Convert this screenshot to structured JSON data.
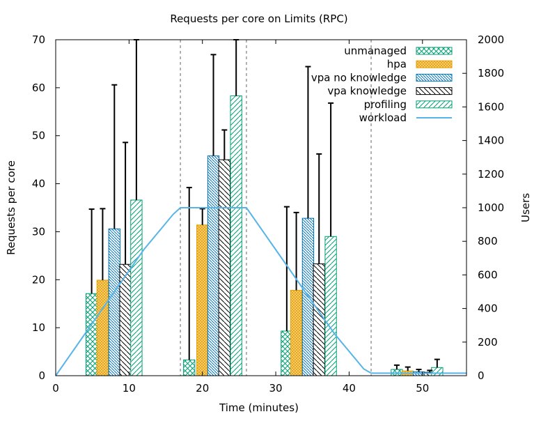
{
  "chart_data": {
    "type": "bar",
    "title": "Requests per core on Limits (RPC)",
    "xlabel": "Time (minutes)",
    "ylabel": "Requests per core",
    "y2label": "Users",
    "xlim": [
      0,
      56
    ],
    "ylim": [
      0,
      70
    ],
    "y2lim": [
      0,
      2000
    ],
    "xticks": [
      0,
      10,
      20,
      30,
      40,
      50
    ],
    "yticks": [
      0,
      10,
      20,
      30,
      40,
      50,
      60,
      70
    ],
    "y2ticks": [
      0,
      200,
      400,
      600,
      800,
      1000,
      1200,
      1400,
      1600,
      1800,
      2000
    ],
    "phase_boundaries": [
      17,
      26,
      43
    ],
    "bar_width": 1.55,
    "legend_position": "top-right",
    "grid": false,
    "series": [
      {
        "name": "unmanaged",
        "pattern": "crosshatch",
        "color": "#009e73",
        "bars": [
          {
            "x": 4.9,
            "value": 17.1,
            "err_high": 34.7
          },
          {
            "x": 18.2,
            "value": 3.3,
            "err_high": 39.2
          },
          {
            "x": 31.5,
            "value": 9.3,
            "err_high": 35.2
          },
          {
            "x": 46.5,
            "value": 1.3,
            "err_high": 2.2
          }
        ]
      },
      {
        "name": "hpa",
        "pattern": "dense",
        "color": "#e69f00",
        "bars": [
          {
            "x": 6.4,
            "value": 19.9,
            "err_high": 34.8
          },
          {
            "x": 20.0,
            "value": 31.4,
            "err_high": 34.8
          },
          {
            "x": 32.8,
            "value": 17.8,
            "err_high": 34.0
          },
          {
            "x": 48.0,
            "value": 1.0,
            "err_high": 1.8
          }
        ]
      },
      {
        "name": "vpa no knowledge",
        "pattern": "back-diagonal-dense",
        "color": "#0072b2",
        "bars": [
          {
            "x": 8.0,
            "value": 30.6,
            "err_high": 60.6
          },
          {
            "x": 21.5,
            "value": 45.8,
            "err_high": 66.9
          },
          {
            "x": 34.4,
            "value": 32.8,
            "err_high": 64.4
          },
          {
            "x": 49.5,
            "value": 0.8,
            "err_high": 1.3
          }
        ]
      },
      {
        "name": "vpa knowledge",
        "pattern": "back-diagonal",
        "color": "#000000",
        "bars": [
          {
            "x": 9.5,
            "value": 23.2,
            "err_high": 48.6
          },
          {
            "x": 23.0,
            "value": 45.0,
            "err_high": 51.2
          },
          {
            "x": 35.9,
            "value": 23.3,
            "err_high": 46.2
          },
          {
            "x": 51.0,
            "value": 0.7,
            "err_high": 1.1
          }
        ]
      },
      {
        "name": "profiling",
        "pattern": "diagonal",
        "color": "#009e73",
        "bars": [
          {
            "x": 11.0,
            "value": 36.6,
            "err_high": 70.0
          },
          {
            "x": 24.6,
            "value": 58.3,
            "err_high": 70.0
          },
          {
            "x": 37.5,
            "value": 29.0,
            "err_high": 56.8
          },
          {
            "x": 52.0,
            "value": 1.7,
            "err_high": 3.4
          }
        ]
      }
    ],
    "workload": {
      "name": "workload",
      "axis": "y2",
      "color": "#56b4e9",
      "x": [
        0,
        4,
        8,
        12,
        16,
        17,
        20,
        26,
        30,
        34,
        38,
        42,
        43,
        56
      ],
      "y": [
        0,
        250,
        500,
        750,
        960,
        1000,
        1000,
        1000,
        750,
        500,
        250,
        40,
        15,
        15
      ]
    }
  }
}
